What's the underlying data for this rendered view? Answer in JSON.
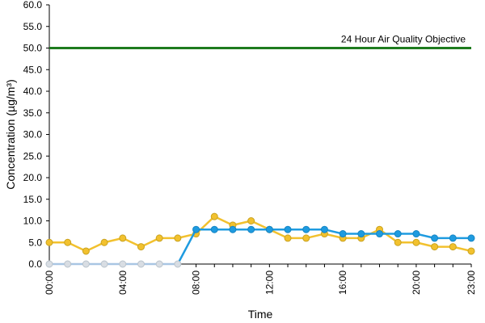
{
  "chart_data": {
    "type": "line",
    "title": "",
    "xlabel": "Time",
    "ylabel": "Concentration (µg/m³)",
    "ylim": [
      0,
      60
    ],
    "y_ticks": [
      "0.0",
      "5.0",
      "10.0",
      "15.0",
      "20.0",
      "25.0",
      "30.0",
      "35.0",
      "40.0",
      "45.0",
      "50.0",
      "55.0",
      "60.0"
    ],
    "x_tick_labels": [
      "00:00",
      "04:00",
      "08:00",
      "12:00",
      "16:00",
      "20:00",
      "23:00"
    ],
    "x_tick_hours": [
      0,
      4,
      8,
      12,
      16,
      20,
      23
    ],
    "x_hours": [
      0,
      1,
      2,
      3,
      4,
      5,
      6,
      7,
      8,
      9,
      10,
      11,
      12,
      13,
      14,
      15,
      16,
      17,
      18,
      19,
      20,
      21,
      22,
      23
    ],
    "grid": false,
    "legend": "none",
    "objective": {
      "label": "24 Hour Air Quality Objective",
      "value": 50,
      "color": "#1e7b1e"
    },
    "series": [
      {
        "color": "#f2c12e",
        "values": [
          5,
          5,
          3,
          5,
          6,
          4,
          6,
          6,
          7,
          11,
          9,
          10,
          8,
          6,
          6,
          7,
          6,
          6,
          8,
          5,
          5,
          4,
          4,
          3
        ]
      },
      {
        "color": "#1e9be0",
        "values": [
          0,
          0,
          0,
          0,
          0,
          0,
          0,
          0,
          8,
          8,
          8,
          8,
          8,
          8,
          8,
          8,
          7,
          7,
          7,
          7,
          7,
          6,
          6,
          6
        ]
      }
    ]
  }
}
